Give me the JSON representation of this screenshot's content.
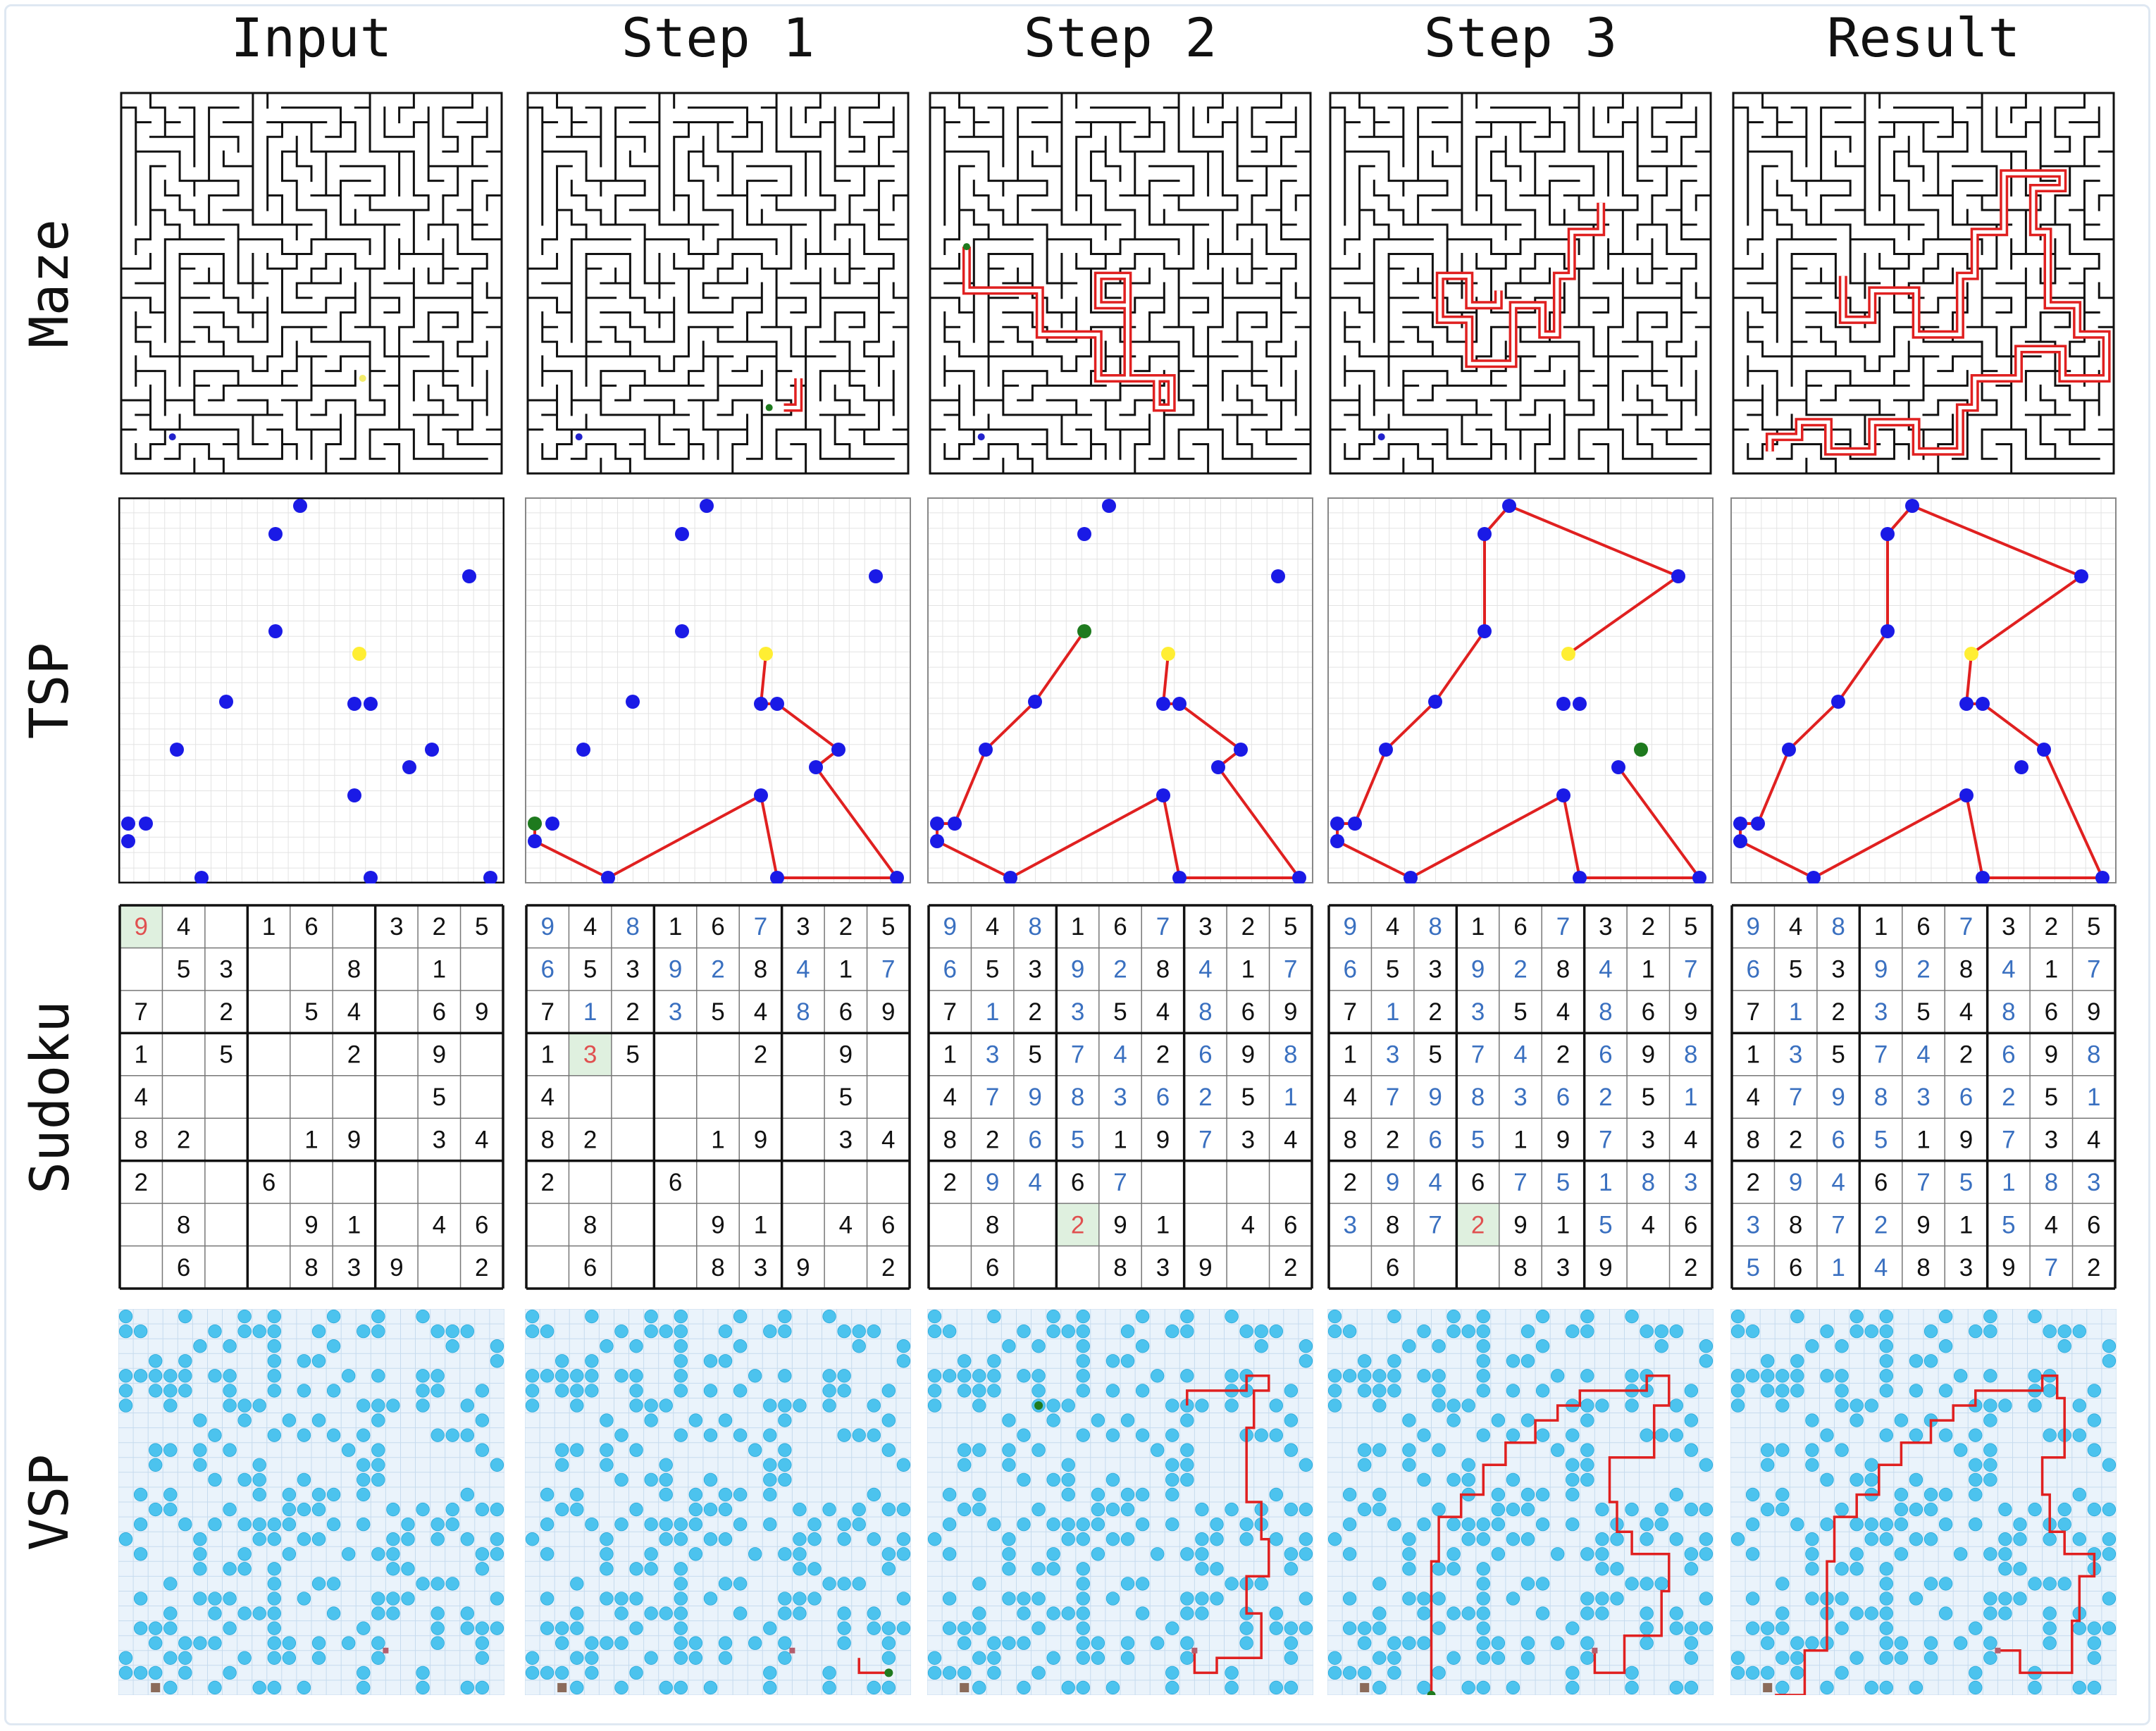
{
  "column_headers": [
    "Input",
    "Step 1",
    "Step 2",
    "Step 3",
    "Result"
  ],
  "row_headers": [
    "Maze",
    "TSP",
    "Sudoku",
    "VSP"
  ],
  "colors": {
    "path": "#e02020",
    "tsp_node": "#1a1ae6",
    "tsp_start": "#ffee33",
    "tsp_current": "#1e7a1e",
    "sudoku_given": "#111111",
    "sudoku_filled": "#3a70c0",
    "sudoku_error": "#e05050",
    "sudoku_highlight": "#dff0df",
    "vsp_background": "#eaf3fb",
    "vsp_obstacle": "#4cc3ee"
  },
  "sudoku": {
    "given": [
      [
        0,
        4,
        0,
        1,
        6,
        0,
        3,
        2,
        5
      ],
      [
        0,
        5,
        3,
        0,
        0,
        8,
        0,
        1,
        0
      ],
      [
        7,
        0,
        2,
        0,
        5,
        4,
        0,
        6,
        9
      ],
      [
        1,
        0,
        5,
        0,
        0,
        2,
        0,
        9,
        0
      ],
      [
        4,
        0,
        0,
        0,
        0,
        0,
        0,
        5,
        0
      ],
      [
        8,
        2,
        0,
        0,
        1,
        9,
        0,
        3,
        4
      ],
      [
        2,
        0,
        0,
        6,
        0,
        0,
        0,
        0,
        0
      ],
      [
        0,
        8,
        0,
        0,
        9,
        1,
        0,
        4,
        6
      ],
      [
        0,
        6,
        0,
        0,
        8,
        3,
        9,
        0,
        2
      ]
    ],
    "solution": [
      [
        9,
        4,
        8,
        1,
        6,
        7,
        3,
        2,
        5
      ],
      [
        6,
        5,
        3,
        9,
        2,
        8,
        4,
        1,
        7
      ],
      [
        7,
        1,
        2,
        3,
        5,
        4,
        8,
        6,
        9
      ],
      [
        1,
        3,
        5,
        7,
        4,
        2,
        6,
        9,
        8
      ],
      [
        4,
        7,
        9,
        8,
        3,
        6,
        2,
        5,
        1
      ],
      [
        8,
        2,
        6,
        5,
        1,
        9,
        7,
        3,
        4
      ],
      [
        2,
        9,
        4,
        6,
        7,
        5,
        1,
        8,
        3
      ],
      [
        3,
        8,
        7,
        2,
        9,
        1,
        5,
        4,
        6
      ],
      [
        5,
        6,
        1,
        4,
        8,
        3,
        9,
        7,
        2
      ]
    ],
    "step1_error": {
      "cell": "r4c2",
      "value": 3
    },
    "step2_error": {
      "cell": "r8c4",
      "value": 2
    },
    "step3_error": {
      "cell": "r8c4",
      "value": 2
    }
  }
}
